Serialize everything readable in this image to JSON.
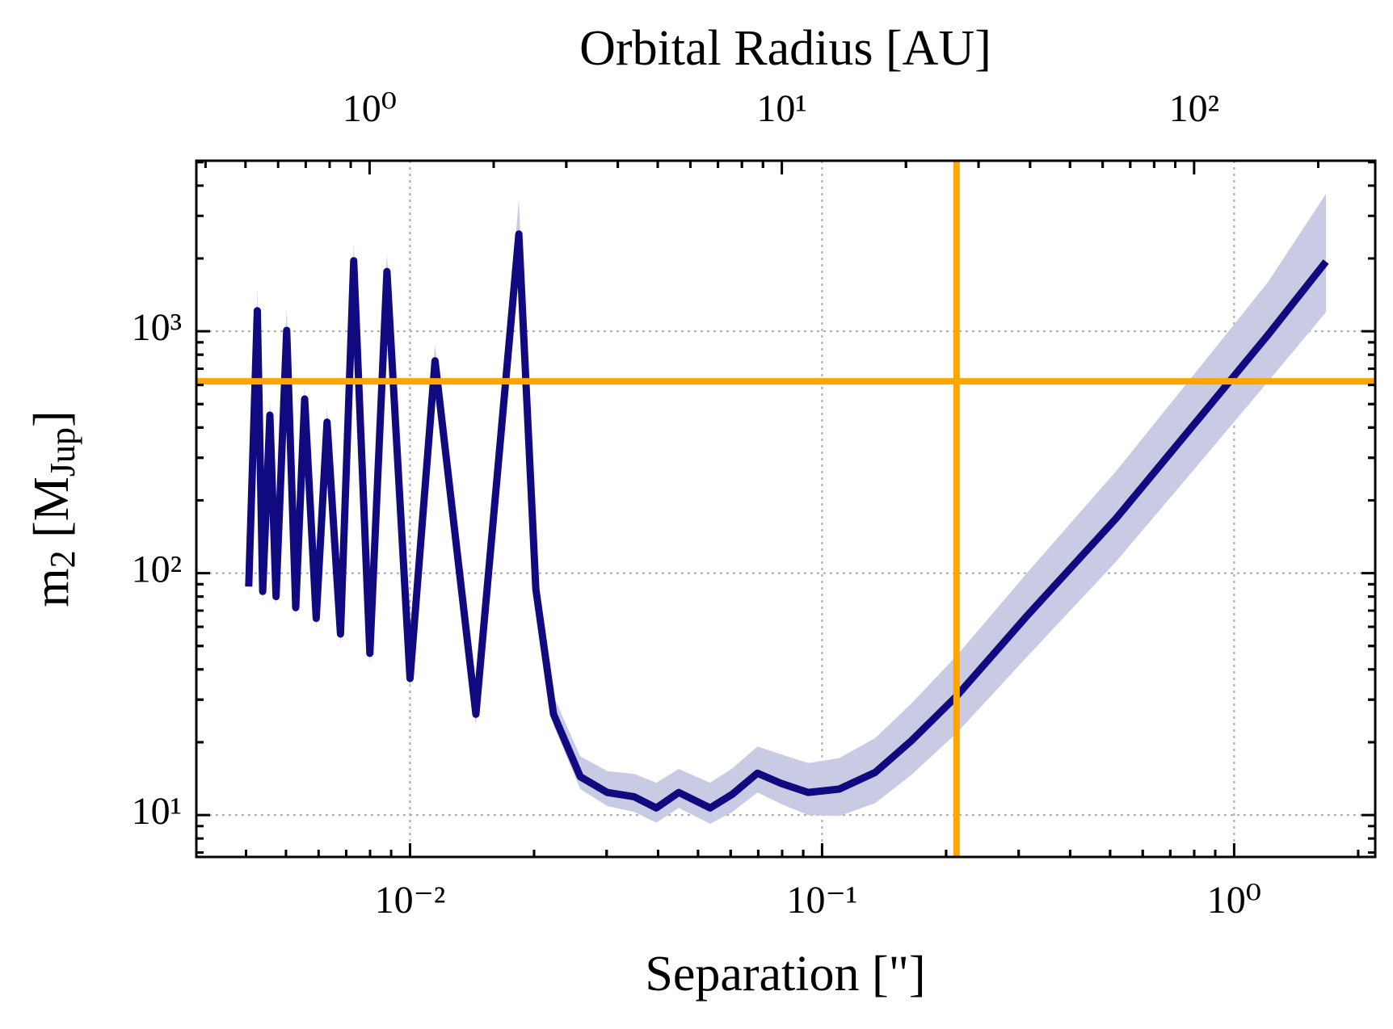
{
  "chart_data": {
    "type": "line",
    "title": "Orbital Radius [AU]",
    "xlabel": "Separation [\"]",
    "ylabel": [
      "m",
      "2",
      " [M",
      "Jup",
      "]"
    ],
    "xscale": "log",
    "yscale": "log",
    "x2scale": "log",
    "xlim": [
      0.00303,
      2.2
    ],
    "ylim": [
      6.71,
      5070
    ],
    "x2lim": [
      0.38,
      275
    ],
    "xticks": [
      {
        "value": 0.01,
        "label": "10⁻²"
      },
      {
        "value": 0.1,
        "label": "10⁻¹"
      },
      {
        "value": 1,
        "label": "10⁰"
      }
    ],
    "yticks": [
      {
        "value": 10,
        "label": "10¹"
      },
      {
        "value": 100,
        "label": "10²"
      },
      {
        "value": 1000,
        "label": "10³"
      }
    ],
    "x2ticks": [
      {
        "value": 1,
        "label": "10⁰"
      },
      {
        "value": 10,
        "label": "10¹"
      },
      {
        "value": 100,
        "label": "10²"
      }
    ],
    "grid": true,
    "minor_ticks": true,
    "x": [
      0.00406,
      0.00426,
      0.00439,
      0.00457,
      0.00473,
      0.00502,
      0.00528,
      0.00555,
      0.00592,
      0.00629,
      0.00678,
      0.0073,
      0.00799,
      0.00879,
      0.01,
      0.0115,
      0.01445,
      0.01837,
      0.0202,
      0.0223,
      0.0259,
      0.0301,
      0.035,
      0.0396,
      0.0449,
      0.0535,
      0.0606,
      0.0697,
      0.0797,
      0.0925,
      0.11,
      0.1345,
      0.1643,
      0.212,
      0.314,
      0.518,
      0.852,
      1.209,
      1.671
    ],
    "series": [
      {
        "color": "#10097f",
        "values": [
          88,
          1216,
          84,
          450,
          80,
          1009,
          72,
          525,
          65,
          421,
          56,
          1958,
          46.6,
          1766,
          36.7,
          755,
          26.1,
          2524,
          85.9,
          26.1,
          14.4,
          12.4,
          11.9,
          10.7,
          12.4,
          10.7,
          12.2,
          14.9,
          13.5,
          12.4,
          12.8,
          15.0,
          20.2,
          31.0,
          66.5,
          169,
          470,
          967,
          1941
        ]
      }
    ],
    "band": {
      "color": "#c9cae4",
      "lower": [
        80,
        1100,
        76,
        410,
        72,
        920,
        65,
        480,
        59,
        385,
        51,
        1800,
        42,
        1600,
        33,
        690,
        23.5,
        2300,
        78,
        23.5,
        12.8,
        10.9,
        10.3,
        9.3,
        10.7,
        9.2,
        10.3,
        12.4,
        11.1,
        10.0,
        9.9,
        11.2,
        14.6,
        21.8,
        45,
        112,
        305,
        620,
        1200
      ],
      "upper": [
        96,
        1500,
        92,
        520,
        88,
        1250,
        79,
        600,
        72,
        480,
        62,
        2300,
        52,
        2100,
        42,
        880,
        31,
        3500,
        98,
        31,
        17.5,
        15.2,
        14.8,
        13.6,
        15.5,
        13.6,
        15.6,
        19.2,
        17.8,
        16.4,
        17.2,
        20.8,
        28.8,
        45.5,
        100,
        265,
        760,
        1600,
        3700
      ]
    },
    "hlines": [
      621
    ],
    "vlines": [
      0.212
    ],
    "ref_color": "#ffa500"
  }
}
